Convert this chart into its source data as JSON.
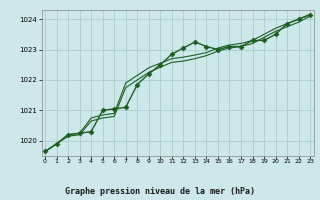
{
  "title": "Graphe pression niveau de la mer (hPa)",
  "bg_color": "#cce8ea",
  "grid_color": "#aacccc",
  "line_color": "#1a5e20",
  "marker_color": "#1a5e20",
  "xlim": [
    -0.3,
    23.3
  ],
  "ylim": [
    1019.5,
    1024.3
  ],
  "yticks": [
    1020,
    1021,
    1022,
    1023,
    1024
  ],
  "xticks": [
    0,
    1,
    2,
    3,
    4,
    5,
    6,
    7,
    8,
    9,
    10,
    11,
    12,
    13,
    14,
    15,
    16,
    17,
    18,
    19,
    20,
    21,
    22,
    23
  ],
  "series": [
    {
      "x": [
        0,
        1,
        2,
        3,
        4,
        5,
        6,
        7,
        8,
        9,
        10,
        11,
        12,
        13,
        14,
        15,
        16,
        17,
        18,
        19,
        20,
        21,
        22,
        23
      ],
      "y": [
        1019.65,
        1019.9,
        1020.2,
        1020.25,
        1020.3,
        1021.0,
        1021.05,
        1021.1,
        1021.85,
        1022.2,
        1022.5,
        1022.85,
        1023.05,
        1023.25,
        1023.1,
        1023.0,
        1023.1,
        1023.1,
        1023.3,
        1023.3,
        1023.5,
        1023.85,
        1024.0,
        1024.15
      ],
      "marker": "D",
      "linewidth": 1.0,
      "markersize": 2.5,
      "linestyle": "-"
    },
    {
      "x": [
        0,
        1,
        2,
        3,
        4,
        5,
        6,
        7,
        8,
        9,
        10,
        11,
        12,
        13,
        14,
        15,
        16,
        17,
        18,
        19,
        20,
        21,
        22,
        23
      ],
      "y": [
        1019.65,
        1019.9,
        1020.2,
        1020.25,
        1020.75,
        1020.85,
        1020.9,
        1021.9,
        1022.15,
        1022.4,
        1022.55,
        1022.7,
        1022.75,
        1022.82,
        1022.9,
        1023.05,
        1023.15,
        1023.2,
        1023.3,
        1023.5,
        1023.7,
        1023.85,
        1024.0,
        1024.15
      ],
      "marker": null,
      "linewidth": 0.8,
      "markersize": 0,
      "linestyle": "-"
    },
    {
      "x": [
        0,
        1,
        2,
        3,
        4,
        5,
        6,
        7,
        8,
        9,
        10,
        11,
        12,
        13,
        14,
        15,
        16,
        17,
        18,
        19,
        20,
        21,
        22,
        23
      ],
      "y": [
        1019.65,
        1019.9,
        1020.15,
        1020.2,
        1020.65,
        1020.75,
        1020.8,
        1021.75,
        1022.0,
        1022.25,
        1022.42,
        1022.58,
        1022.62,
        1022.7,
        1022.8,
        1022.95,
        1023.05,
        1023.1,
        1023.2,
        1023.4,
        1023.6,
        1023.75,
        1023.9,
        1024.1
      ],
      "marker": null,
      "linewidth": 0.8,
      "markersize": 0,
      "linestyle": "-"
    }
  ]
}
